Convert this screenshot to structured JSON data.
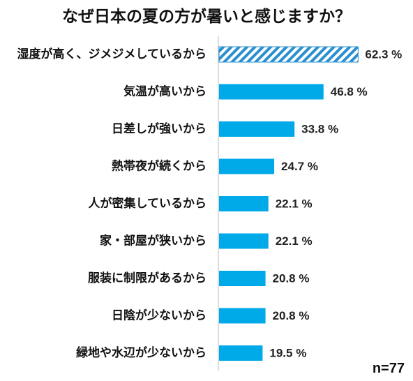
{
  "chart_data": {
    "type": "bar",
    "orientation": "horizontal",
    "title": "なぜ日本の夏の方が暑いと感じますか？",
    "categories": [
      "湿度が高く、ジメジメしているから",
      "気温が高いから",
      "日差しが強いから",
      "熱帯夜が続くから",
      "人が密集しているから",
      "家・部屋が狭いから",
      "服装に制限があるから",
      "日陰が少ないから",
      "緑地や水辺が少ないから"
    ],
    "values": [
      62.3,
      46.8,
      33.8,
      24.7,
      22.1,
      22.1,
      20.8,
      20.8,
      19.5
    ],
    "value_labels": [
      "62.3 %",
      "46.8 %",
      "33.8 %",
      "24.7 %",
      "22.1 %",
      "22.1 %",
      "20.8 %",
      "20.8 %",
      "19.5 %"
    ],
    "unit": "%",
    "xlim": [
      0,
      100
    ],
    "grid": false,
    "colors": {
      "bar": "#00A9E8",
      "highlight_hatch": "#2A8FD0"
    },
    "highlight_index": 0,
    "note": "n=77"
  }
}
